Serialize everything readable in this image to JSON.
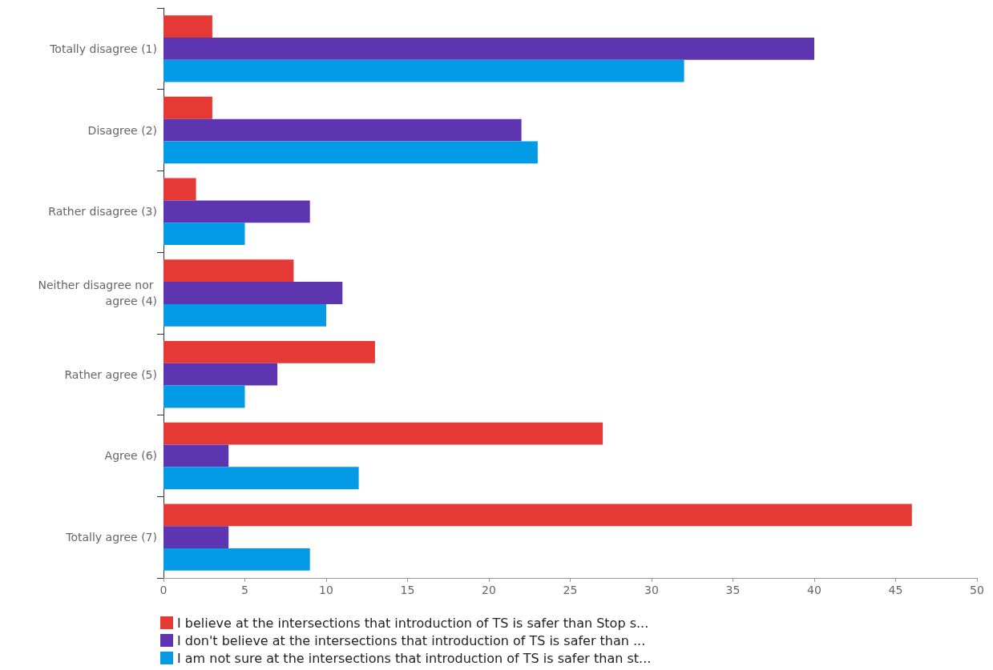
{
  "chart_data": {
    "type": "bar",
    "orientation": "horizontal",
    "categories": [
      "Totally disagree (1)",
      "Disagree (2)",
      "Rather disagree (3)",
      "Neither disagree nor agree (4)",
      "Rather agree (5)",
      "Agree (6)",
      "Totally agree (7)"
    ],
    "series": [
      {
        "name": "I believe at the intersections that introduction of TS is safer than Stop s...",
        "color": "#e53935",
        "values": [
          3,
          3,
          2,
          8,
          13,
          27,
          46
        ]
      },
      {
        "name": "I don't believe at the intersections that introduction of TS is safer than ...",
        "color": "#5e35b1",
        "values": [
          40,
          22,
          9,
          11,
          7,
          4,
          4
        ]
      },
      {
        "name": "I am not sure at the intersections that introduction of TS is safer than st...",
        "color": "#039be5",
        "values": [
          32,
          23,
          5,
          10,
          5,
          12,
          9
        ]
      }
    ],
    "xlim": [
      0,
      50
    ],
    "xticks": [
      0,
      5,
      10,
      15,
      20,
      25,
      30,
      35,
      40,
      45,
      50
    ],
    "grid": false,
    "legend": "bottom"
  }
}
